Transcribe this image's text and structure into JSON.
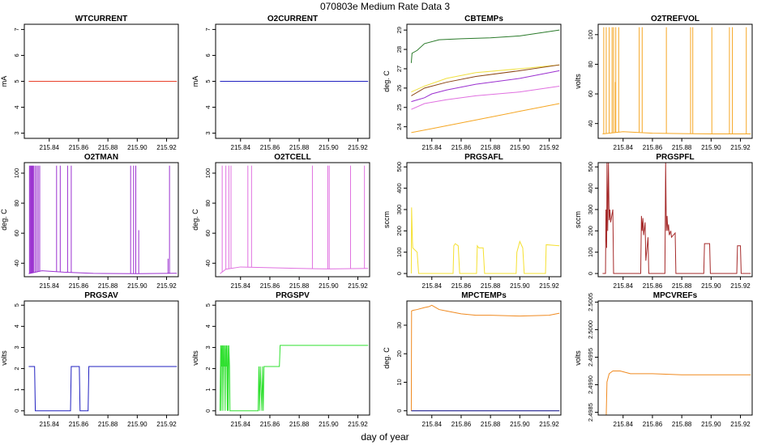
{
  "figure": {
    "title": "070803e   Medium Rate Data 3",
    "xlabel": "day of year"
  },
  "chart_data": [
    {
      "type": "line",
      "title": "WTCURRENT",
      "ylabel": "mA",
      "xlim": [
        215.823,
        215.928
      ],
      "ylim": [
        2.8,
        7.2
      ],
      "xticks": [
        215.84,
        215.86,
        215.88,
        215.9,
        215.92
      ],
      "yticks": [
        3,
        4,
        5,
        6,
        7
      ],
      "series": [
        {
          "name": "WTCURRENT",
          "color": "#e8402a",
          "x": [
            215.826,
            215.927
          ],
          "y": [
            5,
            5
          ]
        }
      ]
    },
    {
      "type": "line",
      "title": "O2CURRENT",
      "ylabel": "mA",
      "xlim": [
        215.823,
        215.928
      ],
      "ylim": [
        2.8,
        7.2
      ],
      "xticks": [
        215.84,
        215.86,
        215.88,
        215.9,
        215.92
      ],
      "yticks": [
        3,
        4,
        5,
        6,
        7
      ],
      "series": [
        {
          "name": "O2CURRENT",
          "color": "#2020c0",
          "x": [
            215.826,
            215.927
          ],
          "y": [
            5,
            5
          ]
        }
      ]
    },
    {
      "type": "line",
      "title": "CBTEMPs",
      "ylabel": "deg. C",
      "xlim": [
        215.823,
        215.928
      ],
      "ylim": [
        23.4,
        29.3
      ],
      "xticks": [
        215.84,
        215.86,
        215.88,
        215.9,
        215.92
      ],
      "yticks": [
        24,
        25,
        26,
        27,
        28,
        29
      ],
      "series": [
        {
          "name": "green",
          "color": "#2a7a2a",
          "x": [
            215.826,
            215.8265,
            215.83,
            215.835,
            215.845,
            215.86,
            215.88,
            215.9,
            215.927
          ],
          "y": [
            27.3,
            27.8,
            27.95,
            28.3,
            28.5,
            28.55,
            28.6,
            28.7,
            29.0
          ]
        },
        {
          "name": "yellow",
          "color": "#f0e040",
          "x": [
            215.826,
            215.835,
            215.85,
            215.87,
            215.9,
            215.927
          ],
          "y": [
            25.8,
            26.1,
            26.5,
            26.8,
            27.0,
            27.2
          ]
        },
        {
          "name": "brown",
          "color": "#8b4513",
          "x": [
            215.826,
            215.835,
            215.85,
            215.87,
            215.9,
            215.927
          ],
          "y": [
            25.6,
            26.0,
            26.3,
            26.6,
            26.9,
            27.2
          ]
        },
        {
          "name": "purple",
          "color": "#9b30d0",
          "x": [
            215.826,
            215.835,
            215.84,
            215.85,
            215.87,
            215.9,
            215.927
          ],
          "y": [
            25.3,
            25.5,
            25.7,
            25.9,
            26.2,
            26.5,
            26.9
          ]
        },
        {
          "name": "pink",
          "color": "#e070e0",
          "x": [
            215.826,
            215.835,
            215.85,
            215.87,
            215.9,
            215.927
          ],
          "y": [
            24.9,
            25.2,
            25.4,
            25.6,
            25.8,
            26.1
          ]
        },
        {
          "name": "orange",
          "color": "#f5a623",
          "x": [
            215.826,
            215.84,
            215.86,
            215.88,
            215.9,
            215.927
          ],
          "y": [
            23.7,
            23.9,
            24.2,
            24.5,
            24.8,
            25.2
          ]
        }
      ]
    },
    {
      "type": "line",
      "title": "O2TREFVOL",
      "ylabel": "volts",
      "xlim": [
        215.823,
        215.928
      ],
      "ylim": [
        30,
        107
      ],
      "xticks": [
        215.84,
        215.86,
        215.88,
        215.9,
        215.92
      ],
      "yticks": [
        40,
        60,
        80,
        100
      ],
      "spikes": [
        215.8268,
        215.8285,
        215.8305,
        215.8325,
        215.8335,
        215.835,
        215.837,
        215.851,
        215.853,
        215.8695,
        215.886,
        215.8875,
        215.9005,
        215.9125,
        215.9145,
        215.924
      ],
      "spike_value": 105,
      "small_spike": [
        215.8347,
        68
      ],
      "series": [
        {
          "name": "base",
          "color": "#f5a623",
          "x": [
            215.826,
            215.84,
            215.86,
            215.88,
            215.9,
            215.927
          ],
          "y": [
            33,
            34.5,
            33.5,
            33.2,
            33,
            33
          ]
        }
      ]
    },
    {
      "type": "line",
      "title": "O2TMAN",
      "ylabel": "deg. C",
      "xlim": [
        215.823,
        215.928
      ],
      "ylim": [
        31,
        107
      ],
      "xticks": [
        215.84,
        215.86,
        215.88,
        215.9,
        215.92
      ],
      "yticks": [
        40,
        60,
        80,
        100
      ],
      "spikes": [
        215.8265,
        215.827,
        215.8275,
        215.828,
        215.8285,
        215.829,
        215.8295,
        215.8305,
        215.8315,
        215.8325,
        215.8335,
        215.845,
        215.8475,
        215.8525,
        215.855,
        215.8955,
        215.8975,
        215.899,
        215.922
      ],
      "spike_value": 105,
      "small_spikes": [
        [
          215.901,
          62
        ],
        [
          215.921,
          43
        ]
      ],
      "series": [
        {
          "name": "base",
          "color": "#9b30d0",
          "x": [
            215.826,
            215.835,
            215.85,
            215.87,
            215.9,
            215.927
          ],
          "y": [
            33,
            35,
            34,
            33.2,
            33,
            33.3
          ]
        }
      ]
    },
    {
      "type": "line",
      "title": "O2TCELL",
      "ylabel": "deg. C",
      "xlim": [
        215.823,
        215.928
      ],
      "ylim": [
        31,
        107
      ],
      "xticks": [
        215.84,
        215.86,
        215.88,
        215.9,
        215.92
      ],
      "yticks": [
        40,
        60,
        80,
        100
      ],
      "spikes": [
        215.8275,
        215.83,
        215.832,
        215.8335,
        215.845,
        215.8475,
        215.889,
        215.8995,
        215.9005,
        215.915,
        215.9245
      ],
      "spike_value": 105,
      "series": [
        {
          "name": "base",
          "color": "#e070e0",
          "x": [
            215.826,
            215.83,
            215.84,
            215.86,
            215.88,
            215.9,
            215.927
          ],
          "y": [
            33,
            36,
            37.5,
            37,
            36.5,
            36.2,
            36.5
          ]
        }
      ]
    },
    {
      "type": "line",
      "title": "PRGSAFL",
      "ylabel": "sccm",
      "xlim": [
        215.823,
        215.928
      ],
      "ylim": [
        -15,
        520
      ],
      "xticks": [
        215.84,
        215.86,
        215.88,
        215.9,
        215.92
      ],
      "yticks": [
        0,
        100,
        200,
        300,
        400,
        500
      ],
      "series": [
        {
          "name": "PRGSAFL",
          "color": "#f5e030",
          "x": [
            215.826,
            215.8262,
            215.8268,
            215.827,
            215.83,
            215.831,
            215.8545,
            215.855,
            215.856,
            215.858,
            215.859,
            215.8705,
            215.871,
            215.872,
            215.875,
            215.876,
            215.8975,
            215.898,
            215.9,
            215.902,
            215.903,
            215.9175,
            215.918,
            215.927
          ],
          "y": [
            0,
            310,
            150,
            120,
            100,
            0,
            0,
            130,
            140,
            130,
            0,
            0,
            130,
            120,
            120,
            0,
            0,
            100,
            150,
            120,
            0,
            0,
            135,
            130
          ]
        }
      ]
    },
    {
      "type": "line",
      "title": "PRGSPFL",
      "ylabel": "sccm",
      "xlim": [
        215.823,
        215.928
      ],
      "ylim": [
        -15,
        520
      ],
      "xticks": [
        215.84,
        215.86,
        215.88,
        215.9,
        215.92
      ],
      "yticks": [
        0,
        100,
        200,
        300,
        400,
        500
      ],
      "series": [
        {
          "name": "PRGSPFL",
          "color": "#a52a2a",
          "x": [
            215.826,
            215.828,
            215.8283,
            215.8288,
            215.829,
            215.8295,
            215.83,
            215.8305,
            215.831,
            215.8315,
            215.833,
            215.8335,
            215.852,
            215.8525,
            215.853,
            215.8535,
            215.854,
            215.855,
            215.8555,
            215.857,
            215.8575,
            215.8685,
            215.869,
            215.8695,
            215.87,
            215.8705,
            215.871,
            215.8715,
            215.8725,
            215.873,
            215.8755,
            215.876,
            215.8805,
            215.895,
            215.8955,
            215.899,
            215.8995,
            215.9175,
            215.918,
            215.92,
            215.9205,
            215.927
          ],
          "y": [
            0,
            0,
            300,
            120,
            520,
            200,
            520,
            250,
            300,
            240,
            300,
            0,
            0,
            270,
            200,
            260,
            180,
            240,
            60,
            170,
            0,
            0,
            520,
            200,
            270,
            200,
            230,
            180,
            200,
            170,
            190,
            0,
            0,
            0,
            140,
            140,
            0,
            0,
            130,
            130,
            0,
            0
          ]
        }
      ]
    },
    {
      "type": "line",
      "title": "PRGSAV",
      "ylabel": "volts",
      "xlim": [
        215.823,
        215.928
      ],
      "ylim": [
        -0.2,
        5.2
      ],
      "xticks": [
        215.84,
        215.86,
        215.88,
        215.9,
        215.92
      ],
      "yticks": [
        0,
        1,
        2,
        3,
        4,
        5
      ],
      "series": [
        {
          "name": "PRGSAV",
          "color": "#2020c0",
          "x": [
            215.826,
            215.83,
            215.8305,
            215.8545,
            215.855,
            215.8605,
            215.861,
            215.8665,
            215.867,
            215.927
          ],
          "y": [
            2.1,
            2.1,
            0,
            0,
            2.1,
            2.1,
            0,
            0,
            2.1,
            2.1
          ]
        }
      ]
    },
    {
      "type": "line",
      "title": "PRGSPV",
      "ylabel": "volts",
      "xlim": [
        215.823,
        215.928
      ],
      "ylim": [
        -0.2,
        5.2
      ],
      "xticks": [
        215.84,
        215.86,
        215.88,
        215.9,
        215.92
      ],
      "yticks": [
        0,
        1,
        2,
        3,
        4,
        5
      ],
      "series": [
        {
          "name": "PRGSPV",
          "color": "#30e030",
          "x": [
            215.826,
            215.8265,
            215.8268,
            215.827,
            215.8274,
            215.8277,
            215.828,
            215.8284,
            215.8287,
            215.829,
            215.8295,
            215.8298,
            215.8302,
            215.8305,
            215.831,
            215.8313,
            215.8316,
            215.832,
            215.8325,
            215.8328,
            215.8345,
            215.852,
            215.8525,
            215.853,
            215.8535,
            215.8545,
            215.855,
            215.8555,
            215.856,
            215.8605,
            215.8665,
            215.867,
            215.927
          ],
          "y": [
            0,
            3.1,
            0,
            3.1,
            2.1,
            3.1,
            0,
            3.1,
            2.1,
            3.1,
            0,
            3.1,
            2.1,
            3.1,
            0,
            3.1,
            0,
            3.1,
            2.1,
            0,
            0,
            0,
            2.1,
            0,
            2.1,
            0,
            2.1,
            0,
            2.1,
            2.1,
            2.1,
            3.1,
            3.1
          ]
        }
      ]
    },
    {
      "type": "line",
      "title": "MPCTEMPs",
      "ylabel": "deg. C",
      "xlim": [
        215.823,
        215.928
      ],
      "ylim": [
        -1.5,
        38.5
      ],
      "xticks": [
        215.84,
        215.86,
        215.88,
        215.9,
        215.92
      ],
      "yticks": [
        0,
        10,
        20,
        30
      ],
      "series": [
        {
          "name": "orange",
          "color": "#f08a20",
          "x": [
            215.826,
            215.8262,
            215.827,
            215.83,
            215.835,
            215.838,
            215.84,
            215.845,
            215.85,
            215.855,
            215.86,
            215.87,
            215.88,
            215.9,
            215.92,
            215.927
          ],
          "y": [
            0,
            35,
            35.2,
            35.5,
            36.2,
            36.5,
            37,
            35.5,
            35,
            34.5,
            34,
            33.5,
            33.5,
            33.2,
            33.5,
            34.2
          ]
        },
        {
          "name": "navy",
          "color": "#000080",
          "x": [
            215.826,
            215.927
          ],
          "y": [
            0,
            0
          ]
        }
      ]
    },
    {
      "type": "line",
      "title": "MPCVREFs",
      "ylabel": "volts",
      "xlim": [
        215.823,
        215.928
      ],
      "ylim": [
        2.49845,
        2.50052
      ],
      "xticks": [
        215.84,
        215.86,
        215.88,
        215.9,
        215.92
      ],
      "yticks": [
        2.4985,
        2.499,
        2.4995,
        2.5,
        2.5005
      ],
      "ytick_labels": [
        "2.4985",
        "2.4990",
        "2.4995",
        "2.5000",
        "2.5005"
      ],
      "series": [
        {
          "name": "orange",
          "color": "#f08a20",
          "x": [
            215.826,
            215.8285,
            215.829,
            215.8305,
            215.833,
            215.838,
            215.845,
            215.86,
            215.88,
            215.9,
            215.927
          ],
          "y": [
            2.49845,
            2.49845,
            2.49905,
            2.4992,
            2.49925,
            2.49925,
            2.4992,
            2.4992,
            2.49918,
            2.49918,
            2.49918
          ]
        }
      ]
    }
  ]
}
